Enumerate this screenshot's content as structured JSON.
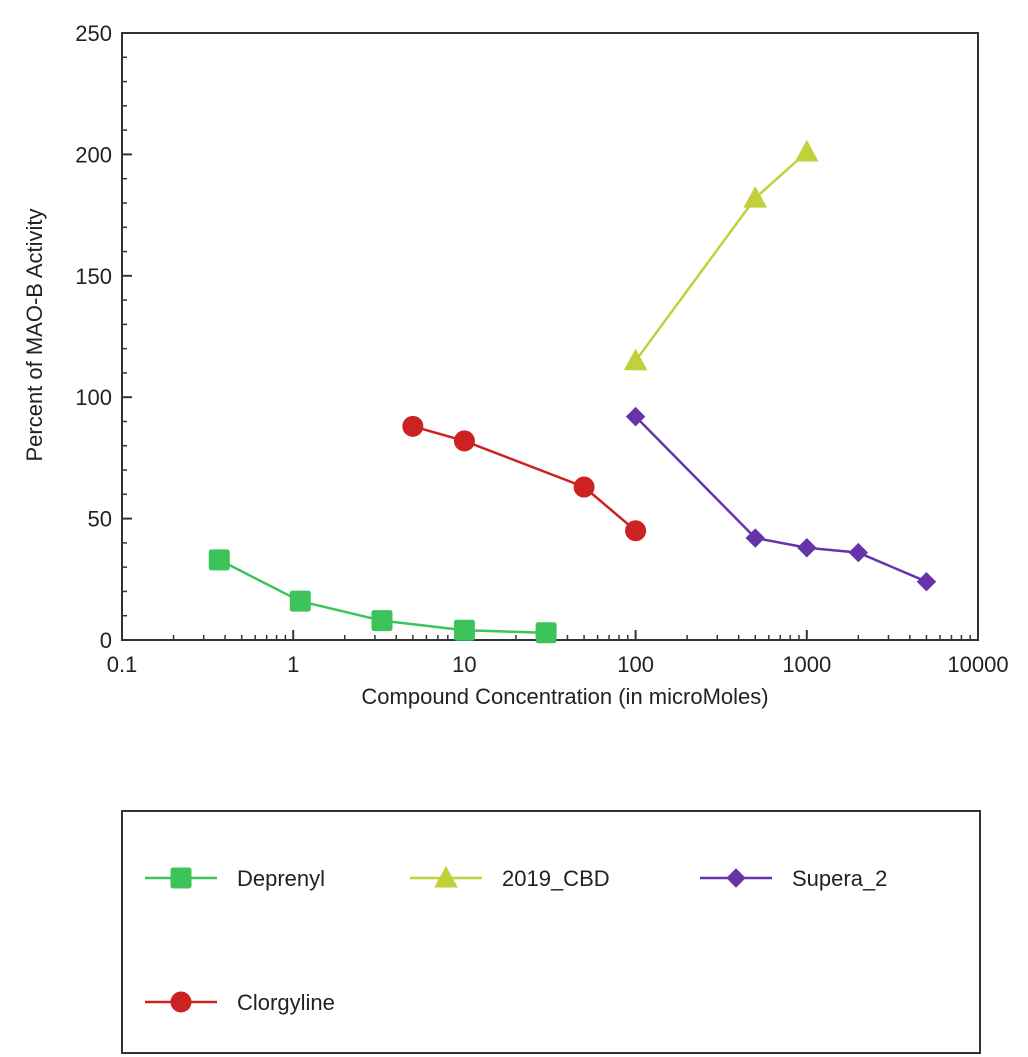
{
  "chart_data": {
    "type": "line",
    "title": "",
    "xlabel": "Compound Concentration (in microMoles)",
    "ylabel": "Percent of MAO-B Activity",
    "xscale": "log",
    "xlim": [
      0.1,
      10000
    ],
    "ylim": [
      0,
      250
    ],
    "xticks": [
      {
        "value": 0.1,
        "label": "0.1"
      },
      {
        "value": 1,
        "label": "1"
      },
      {
        "value": 10,
        "label": "10"
      },
      {
        "value": 100,
        "label": "100"
      },
      {
        "value": 1000,
        "label": "1000"
      },
      {
        "value": 10000,
        "label": "10000"
      }
    ],
    "yticks": [
      {
        "value": 0,
        "label": "0"
      },
      {
        "value": 50,
        "label": "50"
      },
      {
        "value": 100,
        "label": "100"
      },
      {
        "value": 150,
        "label": "150"
      },
      {
        "value": 200,
        "label": "200"
      },
      {
        "value": 250,
        "label": "250"
      }
    ],
    "grid": false,
    "legend_position": "below",
    "series": [
      {
        "name": "Deprenyl",
        "marker": "square",
        "color": "#3cc35a",
        "x": [
          0.37,
          1.1,
          3.3,
          10,
          30
        ],
        "y": [
          33,
          16,
          8,
          4,
          3
        ]
      },
      {
        "name": "2019_CBD",
        "marker": "triangle",
        "color": "#c2d13a",
        "x": [
          100,
          500,
          1000
        ],
        "y": [
          115,
          182,
          201
        ]
      },
      {
        "name": "Supera_2",
        "marker": "diamond",
        "color": "#6633aa",
        "x": [
          100,
          500,
          1000,
          2000,
          5000
        ],
        "y": [
          92,
          42,
          38,
          36,
          24
        ]
      },
      {
        "name": "Clorgyline",
        "marker": "circle",
        "color": "#cc2222",
        "x": [
          5,
          10,
          50,
          100
        ],
        "y": [
          88,
          82,
          63,
          45
        ]
      }
    ]
  }
}
